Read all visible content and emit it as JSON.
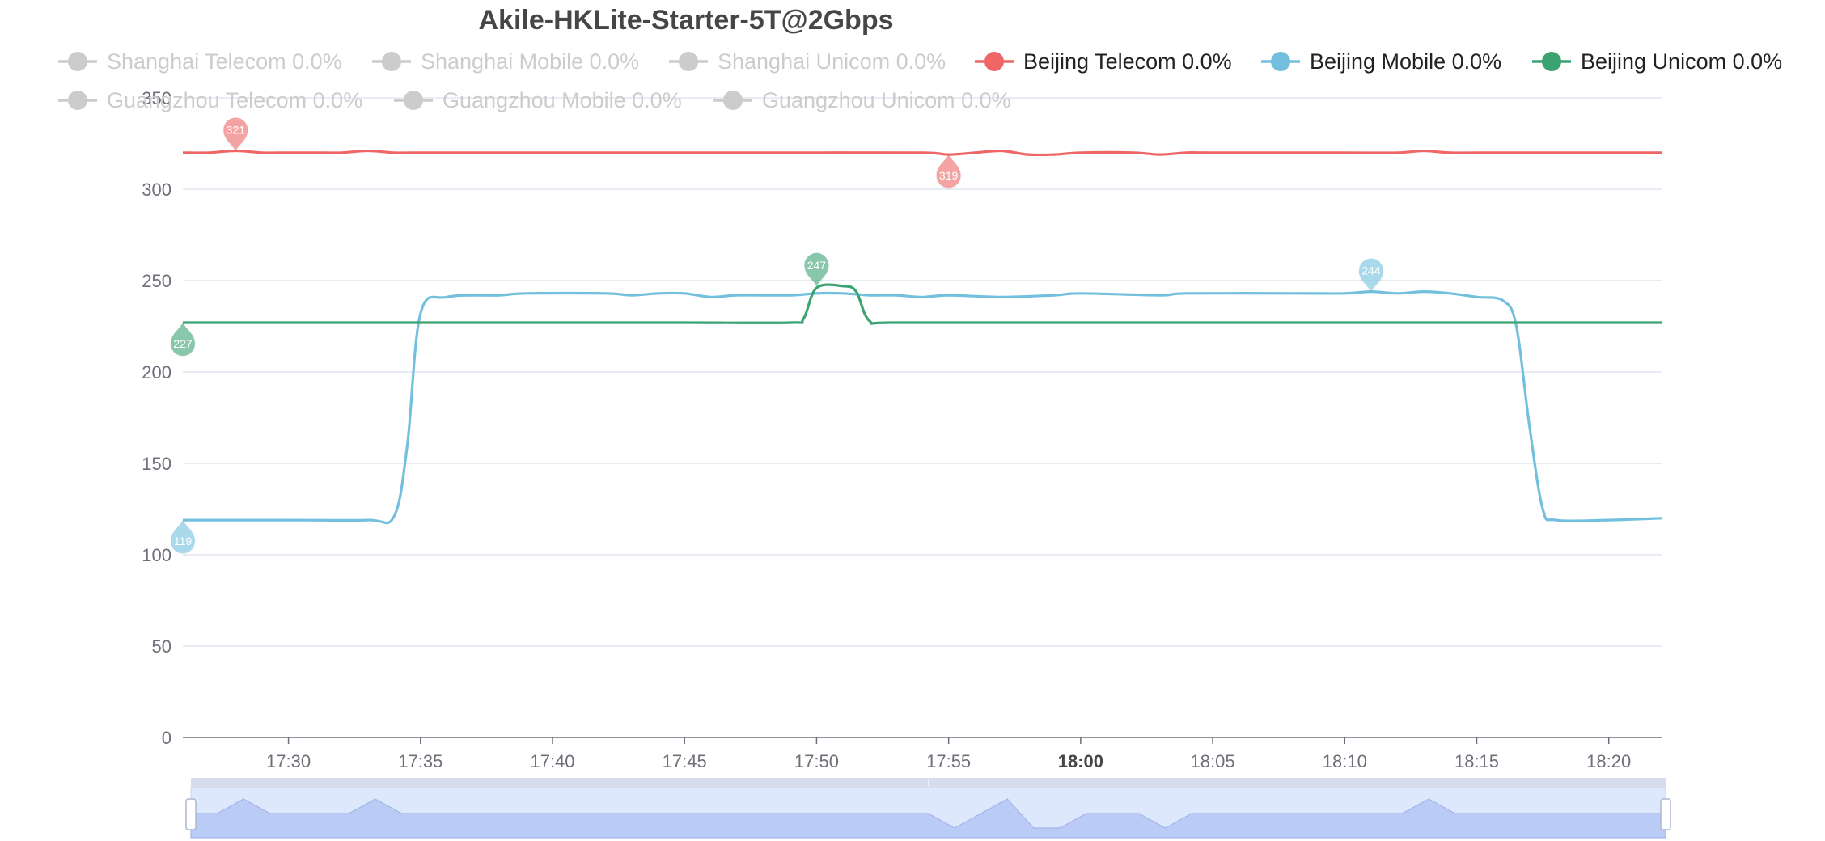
{
  "chart_data": {
    "type": "line",
    "title": "Akile-HKLite-Starter-5T@2Gbps",
    "xlabel": "",
    "ylabel": "",
    "x_ticks": [
      "17:30",
      "17:35",
      "17:40",
      "17:45",
      "17:50",
      "17:55",
      "18:00",
      "18:05",
      "18:10",
      "18:15",
      "18:20"
    ],
    "x_ticks_bold": [
      "18:00"
    ],
    "x_range": [
      "17:26",
      "18:22"
    ],
    "ylim": [
      0,
      350
    ],
    "y_ticks": [
      0,
      50,
      100,
      150,
      200,
      250,
      300,
      350
    ],
    "grid": true,
    "legend_position": "top",
    "legend": [
      {
        "label": "Shanghai Telecom 0.0%",
        "active": false
      },
      {
        "label": "Shanghai Mobile 0.0%",
        "active": false
      },
      {
        "label": "Shanghai Unicom 0.0%",
        "active": false
      },
      {
        "label": "Beijing Telecom 0.0%",
        "active": true,
        "color": "#ee6666"
      },
      {
        "label": "Beijing Mobile 0.0%",
        "active": true,
        "color": "#73c0de"
      },
      {
        "label": "Beijing Unicom 0.0%",
        "active": true,
        "color": "#3ba272"
      },
      {
        "label": "Guangzhou Telecom 0.0%",
        "active": false
      },
      {
        "label": "Guangzhou Mobile 0.0%",
        "active": false
      },
      {
        "label": "Guangzhou Unicom 0.0%",
        "active": false
      }
    ],
    "series": [
      {
        "name": "Beijing Telecom",
        "color": "#ee6666",
        "points": [
          [
            "17:26",
            320
          ],
          [
            "17:27",
            320
          ],
          [
            "17:28",
            321
          ],
          [
            "17:29",
            320
          ],
          [
            "17:30",
            320
          ],
          [
            "17:31",
            320
          ],
          [
            "17:32",
            320
          ],
          [
            "17:33",
            321
          ],
          [
            "17:34",
            320
          ],
          [
            "17:35",
            320
          ],
          [
            "17:40",
            320
          ],
          [
            "17:45",
            320
          ],
          [
            "17:50",
            320
          ],
          [
            "17:54",
            320
          ],
          [
            "17:55",
            319
          ],
          [
            "17:56",
            320
          ],
          [
            "17:57",
            321
          ],
          [
            "17:58",
            319
          ],
          [
            "17:59",
            319
          ],
          [
            "18:00",
            320
          ],
          [
            "18:02",
            320
          ],
          [
            "18:03",
            319
          ],
          [
            "18:04",
            320
          ],
          [
            "18:05",
            320
          ],
          [
            "18:10",
            320
          ],
          [
            "18:12",
            320
          ],
          [
            "18:13",
            321
          ],
          [
            "18:14",
            320
          ],
          [
            "18:16",
            320
          ],
          [
            "18:20",
            320
          ],
          [
            "18:22",
            320
          ]
        ],
        "markers": [
          {
            "type": "max",
            "x": "17:28",
            "value": 321
          },
          {
            "type": "min",
            "x": "17:55",
            "value": 319
          }
        ]
      },
      {
        "name": "Beijing Mobile",
        "color": "#73c0de",
        "points": [
          [
            "17:26",
            119
          ],
          [
            "17:30",
            119
          ],
          [
            "17:33",
            119
          ],
          [
            "17:34",
            121
          ],
          [
            "17:34.5",
            160
          ],
          [
            "17:35",
            232
          ],
          [
            "17:36",
            241
          ],
          [
            "17:38",
            242
          ],
          [
            "17:39",
            243
          ],
          [
            "17:42",
            243
          ],
          [
            "17:43",
            242
          ],
          [
            "17:44",
            243
          ],
          [
            "17:45",
            243
          ],
          [
            "17:46",
            241
          ],
          [
            "17:47",
            242
          ],
          [
            "17:49",
            242
          ],
          [
            "17:50",
            243
          ],
          [
            "17:51",
            243
          ],
          [
            "17:52",
            242
          ],
          [
            "17:53",
            242
          ],
          [
            "17:54",
            241
          ],
          [
            "17:55",
            242
          ],
          [
            "17:57",
            241
          ],
          [
            "17:59",
            242
          ],
          [
            "18:00",
            243
          ],
          [
            "18:03",
            242
          ],
          [
            "18:04",
            243
          ],
          [
            "18:08",
            243
          ],
          [
            "18:10",
            243
          ],
          [
            "18:11",
            244
          ],
          [
            "18:12",
            243
          ],
          [
            "18:13",
            244
          ],
          [
            "18:14",
            243
          ],
          [
            "18:15",
            241
          ],
          [
            "18:16",
            239
          ],
          [
            "18:16.5",
            225
          ],
          [
            "18:17",
            170
          ],
          [
            "18:17.5",
            125
          ],
          [
            "18:18",
            119
          ],
          [
            "18:20",
            119
          ],
          [
            "18:22",
            120
          ]
        ],
        "markers": [
          {
            "type": "max",
            "x": "18:11",
            "value": 244
          },
          {
            "type": "min",
            "x": "17:26",
            "value": 119
          }
        ]
      },
      {
        "name": "Beijing Unicom",
        "color": "#3ba272",
        "points": [
          [
            "17:26",
            227
          ],
          [
            "17:30",
            227
          ],
          [
            "17:40",
            227
          ],
          [
            "17:45",
            227
          ],
          [
            "17:49",
            227
          ],
          [
            "17:49.5",
            229
          ],
          [
            "17:50",
            246
          ],
          [
            "17:51",
            247
          ],
          [
            "17:51.5",
            244
          ],
          [
            "17:52",
            228
          ],
          [
            "17:53",
            227
          ],
          [
            "18:00",
            227
          ],
          [
            "18:10",
            227
          ],
          [
            "18:20",
            227
          ],
          [
            "18:22",
            227
          ]
        ],
        "markers": [
          {
            "type": "max",
            "x": "17:50",
            "value": 247
          },
          {
            "type": "min",
            "x": "17:26",
            "value": 227
          }
        ]
      }
    ],
    "zoom_slider": {
      "handle_label": "⁞",
      "overview_values": [
        [
          "17:26",
          320
        ],
        [
          "17:27",
          320
        ],
        [
          "17:28",
          321
        ],
        [
          "17:29",
          320
        ],
        [
          "17:32",
          320
        ],
        [
          "17:33",
          321
        ],
        [
          "17:34",
          320
        ],
        [
          "17:54",
          320
        ],
        [
          "17:55",
          319
        ],
        [
          "17:57",
          321
        ],
        [
          "17:58",
          319
        ],
        [
          "17:59",
          319
        ],
        [
          "18:00",
          320
        ],
        [
          "18:02",
          320
        ],
        [
          "18:03",
          319
        ],
        [
          "18:04",
          320
        ],
        [
          "18:12",
          320
        ],
        [
          "18:13",
          321
        ],
        [
          "18:14",
          320
        ],
        [
          "18:22",
          320
        ]
      ]
    }
  }
}
